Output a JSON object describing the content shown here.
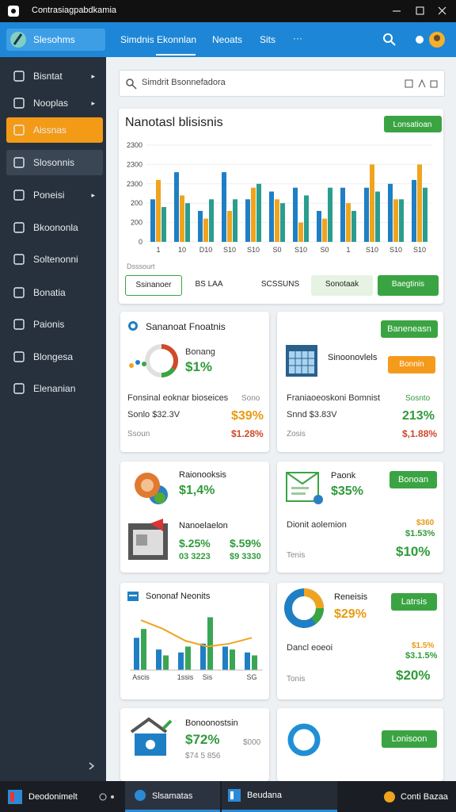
{
  "window": {
    "title": "Contrasiagpabdkamia"
  },
  "nav": {
    "brand": "Slesohms",
    "tabs": [
      "Simdnis Ekonnlan",
      "Neoats",
      "Sits",
      "···"
    ]
  },
  "sidebar": {
    "items": [
      "Bisntat",
      "Nooplas",
      "Aissnas",
      "Slosonnis",
      "Poneisi",
      "Bkoononla",
      "Soltenonni",
      "Bonatia",
      "Paionis",
      "Blongesa",
      "Elenanian"
    ]
  },
  "search": {
    "placeholder": "Simdrit Bsonnefadora"
  },
  "chart_data": {
    "type": "bar",
    "title": "Nanotasl blisisnis",
    "button": "Lonsatioan",
    "note": "Dsssourt",
    "categories": [
      "1",
      "10",
      "D10",
      "S10",
      "S10",
      "S0",
      "S10",
      "S0",
      "1",
      "S10",
      "S10",
      "S10"
    ],
    "series": [
      {
        "name": "A",
        "color": "#1f7fc4",
        "values": [
          1100,
          1800,
          800,
          1800,
          1100,
          1300,
          1400,
          800,
          1400,
          1400,
          1500,
          1600
        ]
      },
      {
        "name": "B",
        "color": "#f0a41e",
        "values": [
          1600,
          1200,
          600,
          800,
          1400,
          1100,
          500,
          600,
          1000,
          2000,
          1100,
          2000
        ]
      },
      {
        "name": "C",
        "color": "#2a9d8f",
        "values": [
          900,
          1000,
          1100,
          1100,
          1500,
          1000,
          1200,
          1400,
          800,
          1300,
          1100,
          1400
        ]
      }
    ],
    "ylim": [
      0,
      2500
    ],
    "yticks": [
      0,
      {
        "value": 500,
        "label": "200"
      },
      {
        "value": 1000,
        "label": "200"
      },
      {
        "value": 1500,
        "label": "2300"
      },
      {
        "value": 2000,
        "label": "2300"
      },
      {
        "value": 2500,
        "label": "2300"
      }
    ],
    "buttons": [
      "Ssinanoer",
      "BS LAA",
      "SCSSUNS",
      "Sonotaak",
      "Baegtinis"
    ]
  },
  "cards": [
    {
      "title": "Sananoat Fnoatnis",
      "label": "Bonang",
      "value": "$1%",
      "rows": [
        [
          "Fonsinal eoknar bioseices",
          "Sono"
        ],
        [
          "Sonlo $32.3V",
          "$39%"
        ],
        [
          "Ssoun",
          "$1.28%"
        ]
      ]
    },
    {
      "button": "Baneneasn",
      "title": "Sinoonovlels",
      "badge": "Bonnin",
      "rows": [
        [
          "Franiaoeoskoni Bomnist",
          "Sosnto"
        ],
        [
          "Snnd $3.83V",
          "213%"
        ],
        [
          "Zosis",
          "$,1.88%"
        ]
      ]
    },
    {
      "title": "Raionooksis",
      "value": "$1,4%",
      "subtitle": "Nanoelaelon",
      "values": [
        "$.25%",
        "$.59%",
        "03 3223",
        "$9 3330"
      ]
    },
    {
      "title": "Paonk",
      "value": "$35%",
      "button": "Bonoan",
      "subtitle": "Dionit aolemion",
      "values": [
        "$360",
        "$1.53%"
      ],
      "foot": [
        "Tenis",
        "$10%"
      ]
    },
    {
      "title": "Sononaf Neonits",
      "mini_chart": {
        "type": "bar",
        "categories": [
          "Ascis",
          null,
          "1ssis",
          "Sis",
          null,
          "SG"
        ],
        "series": [
          {
            "name": "A",
            "color": "#1f7fc4",
            "values": [
              55,
              35,
              30,
              45,
              40,
              30
            ]
          },
          {
            "name": "B",
            "color": "#3aa655",
            "values": [
              70,
              25,
              40,
              90,
              35,
              25
            ]
          }
        ],
        "trend": {
          "color": "#f0a41e",
          "values": [
            85,
            70,
            50,
            40,
            45,
            55
          ]
        },
        "ylim": [
          0,
          100
        ]
      }
    },
    {
      "title": "Reneisis",
      "value": "$29%",
      "button": "Latrsis",
      "subtitle": "Dancl eoeoi",
      "values": [
        "$1.5%",
        "$3.1.5%"
      ],
      "foot": [
        "Tonis",
        "$20%"
      ]
    },
    {
      "title": "Bonoonostsin",
      "value": "$72%",
      "values": [
        "$000",
        "$74 5 856"
      ]
    },
    {
      "button": "Lonisoon"
    }
  ],
  "taskbar": {
    "items": [
      "Deodonimelt",
      "Slsamatas",
      "Beudana",
      "Conti Bazaa"
    ]
  }
}
